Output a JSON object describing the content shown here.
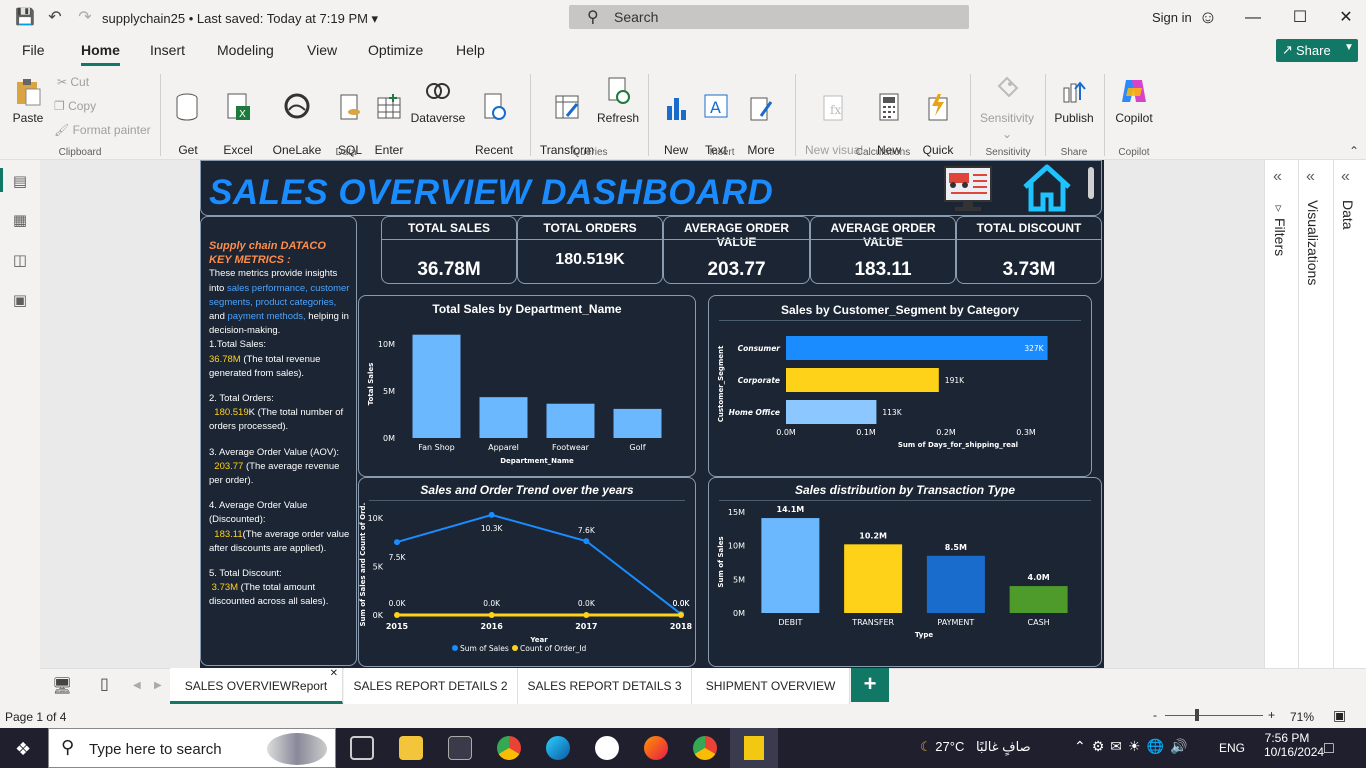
{
  "titlebar": {
    "document": "supplychain25",
    "saved": "Last saved: Today at 7:19 PM",
    "search_label": "Search",
    "signin": "Sign in"
  },
  "menu": {
    "tabs": [
      "File",
      "Home",
      "Insert",
      "Modeling",
      "View",
      "Optimize",
      "Help"
    ],
    "share": "Share"
  },
  "ribbon": {
    "clipboard": {
      "paste": "Paste",
      "cut": "Cut",
      "copy": "Copy",
      "format_painter": "Format painter",
      "group": "Clipboard"
    },
    "data": {
      "get_data": "Get\ndata",
      "excel": "Excel\nworkbook",
      "onelake": "OneLake\ndata hub",
      "sql": "SQL\nServer",
      "enter_data": "Enter\ndata",
      "dataverse": "Dataverse",
      "recent": "Recent\nsources",
      "group": "Data"
    },
    "queries": {
      "transform": "Transform\ndata",
      "refresh": "Refresh",
      "group": "Queries"
    },
    "insert": {
      "new_visual": "New\nvisual",
      "text_box": "Text\nbox",
      "more_visuals": "More\nvisuals",
      "group": "Insert"
    },
    "calculations": {
      "new_visual_calc": "New visual\ncalculation",
      "new_measure": "New\nmeasure",
      "quick_measure": "Quick\nmeasure",
      "group": "Calculations"
    },
    "sensitivity": {
      "label": "Sensitivity",
      "group": "Sensitivity"
    },
    "share": {
      "publish": "Publish",
      "group": "Share"
    },
    "copilot": {
      "label": "Copilot",
      "group": "Copilot"
    }
  },
  "report": {
    "title": "SALES OVERVIEW DASHBOARD",
    "kpis": [
      {
        "title": "TOTAL SALES",
        "value": "36.78M"
      },
      {
        "title": "TOTAL ORDERS",
        "value": "180.519K"
      },
      {
        "title": "AVERAGE ORDER VALUE",
        "value": "203.77"
      },
      {
        "title": "AVERAGE ORDER VALUE",
        "value": "183.11"
      },
      {
        "title": "TOTAL DISCOUNT",
        "value": "3.73M"
      }
    ],
    "metrics_panel": {
      "heading1": "Supply chain DATACO",
      "heading2": "KEY METRICS :",
      "intro_a": "These metrics provide insights into ",
      "intro_b": "sales performance, customer segments, product categories,",
      "intro_c": " and ",
      "intro_d": "payment methods,",
      "intro_e": " helping in decision-making.",
      "m1_label": "1.Total Sales:",
      "m1_value": "36.78M",
      "m1_desc": " (The total revenue generated from sales).",
      "m2_label": "2. Total Orders:",
      "m2_value": "180.519",
      "m2_desc": "K (The total number of orders processed).",
      "m3_label": "3. Average Order Value (AOV):",
      "m3_value": "203.77",
      "m3_desc": " (The average revenue per order).",
      "m4_label": "4. Average Order Value (Discounted):",
      "m4_value": "183.11",
      "m4_desc": "(The average order value after discounts are applied).",
      "m5_label": "5. Total Discount:",
      "m5_value": "3.73M",
      "m5_desc": " (The total amount discounted across all sales)."
    }
  },
  "chart_data": [
    {
      "type": "bar",
      "title": "Total Sales by Department_Name",
      "xlabel": "Department_Name",
      "ylabel": "Total Sales",
      "categories": [
        "Fan Shop",
        "Apparel",
        "Footwear",
        "Golf"
      ],
      "values": [
        11.0,
        4.35,
        3.65,
        3.1
      ],
      "yticks": [
        "0M",
        "5M",
        "10M"
      ],
      "ylim": [
        0,
        11.5
      ],
      "color": "#6cb8ff"
    },
    {
      "type": "bar",
      "orientation": "horizontal",
      "title": "Sales by Customer_Segment by Category",
      "xlabel": "Sum of Days_for_shipping_real",
      "ylabel": "Customer_Segment",
      "categories": [
        "Consumer",
        "Corporate",
        "Home Office"
      ],
      "values": [
        327,
        191,
        113
      ],
      "labels": [
        "327K",
        "191K",
        "113K"
      ],
      "colors": [
        "#1a8cff",
        "#ffd21a",
        "#8cc7ff"
      ],
      "xticks": [
        "0.0M",
        "0.1M",
        "0.2M",
        "0.3M"
      ],
      "xlim": [
        0,
        330
      ]
    },
    {
      "type": "line",
      "title": "Sales and Order Trend over the years",
      "xlabel": "Year",
      "ylabel": "Sum of Sales and Count of Ord...",
      "x": [
        "2015",
        "2016",
        "2017",
        "2018"
      ],
      "yticks": [
        "0K",
        "5K",
        "10K"
      ],
      "ylim": [
        0,
        10.8
      ],
      "series": [
        {
          "name": "Sum of Sales",
          "values": [
            7.5,
            10.3,
            7.6,
            0.1
          ],
          "labels": [
            "7.5K",
            "10.3K",
            "7.6K",
            "0.0K"
          ],
          "color": "#1a8cff"
        },
        {
          "name": "Count of Order_Id",
          "values": [
            0,
            0,
            0,
            0
          ],
          "labels": [
            "0.0K",
            "0.0K",
            "0.0K",
            "0.0K"
          ],
          "color": "#ffd21a"
        }
      ]
    },
    {
      "type": "bar",
      "title": "Sales distribution by Transaction Type",
      "xlabel": "Type",
      "ylabel": "Sum of Sales",
      "categories": [
        "DEBIT",
        "TRANSFER",
        "PAYMENT",
        "CASH"
      ],
      "values": [
        14.1,
        10.2,
        8.5,
        4.0
      ],
      "labels": [
        "14.1M",
        "10.2M",
        "8.5M",
        "4.0M"
      ],
      "colors": [
        "#6cb8ff",
        "#ffd21a",
        "#1a6ccc",
        "#4e9a2a"
      ],
      "yticks": [
        "0M",
        "5M",
        "10M",
        "15M"
      ],
      "ylim": [
        0,
        15
      ]
    }
  ],
  "right_panes": {
    "filters": "Filters",
    "visualizations": "Visualizations",
    "data": "Data"
  },
  "page_tabs": [
    "SALES OVERVIEWReport",
    "SALES REPORT DETAILS 2",
    "SALES REPORT DETAILS 3",
    "SHIPMENT OVERVIEW"
  ],
  "statusbar": {
    "page": "Page 1 of 4",
    "zoom": "71%"
  },
  "taskbar": {
    "search": "Type here to search",
    "weather": "27°C",
    "weather_desc": "صافٍ غالبًا",
    "lang": "ENG",
    "time": "7:56 PM",
    "date": "10/16/2024"
  }
}
